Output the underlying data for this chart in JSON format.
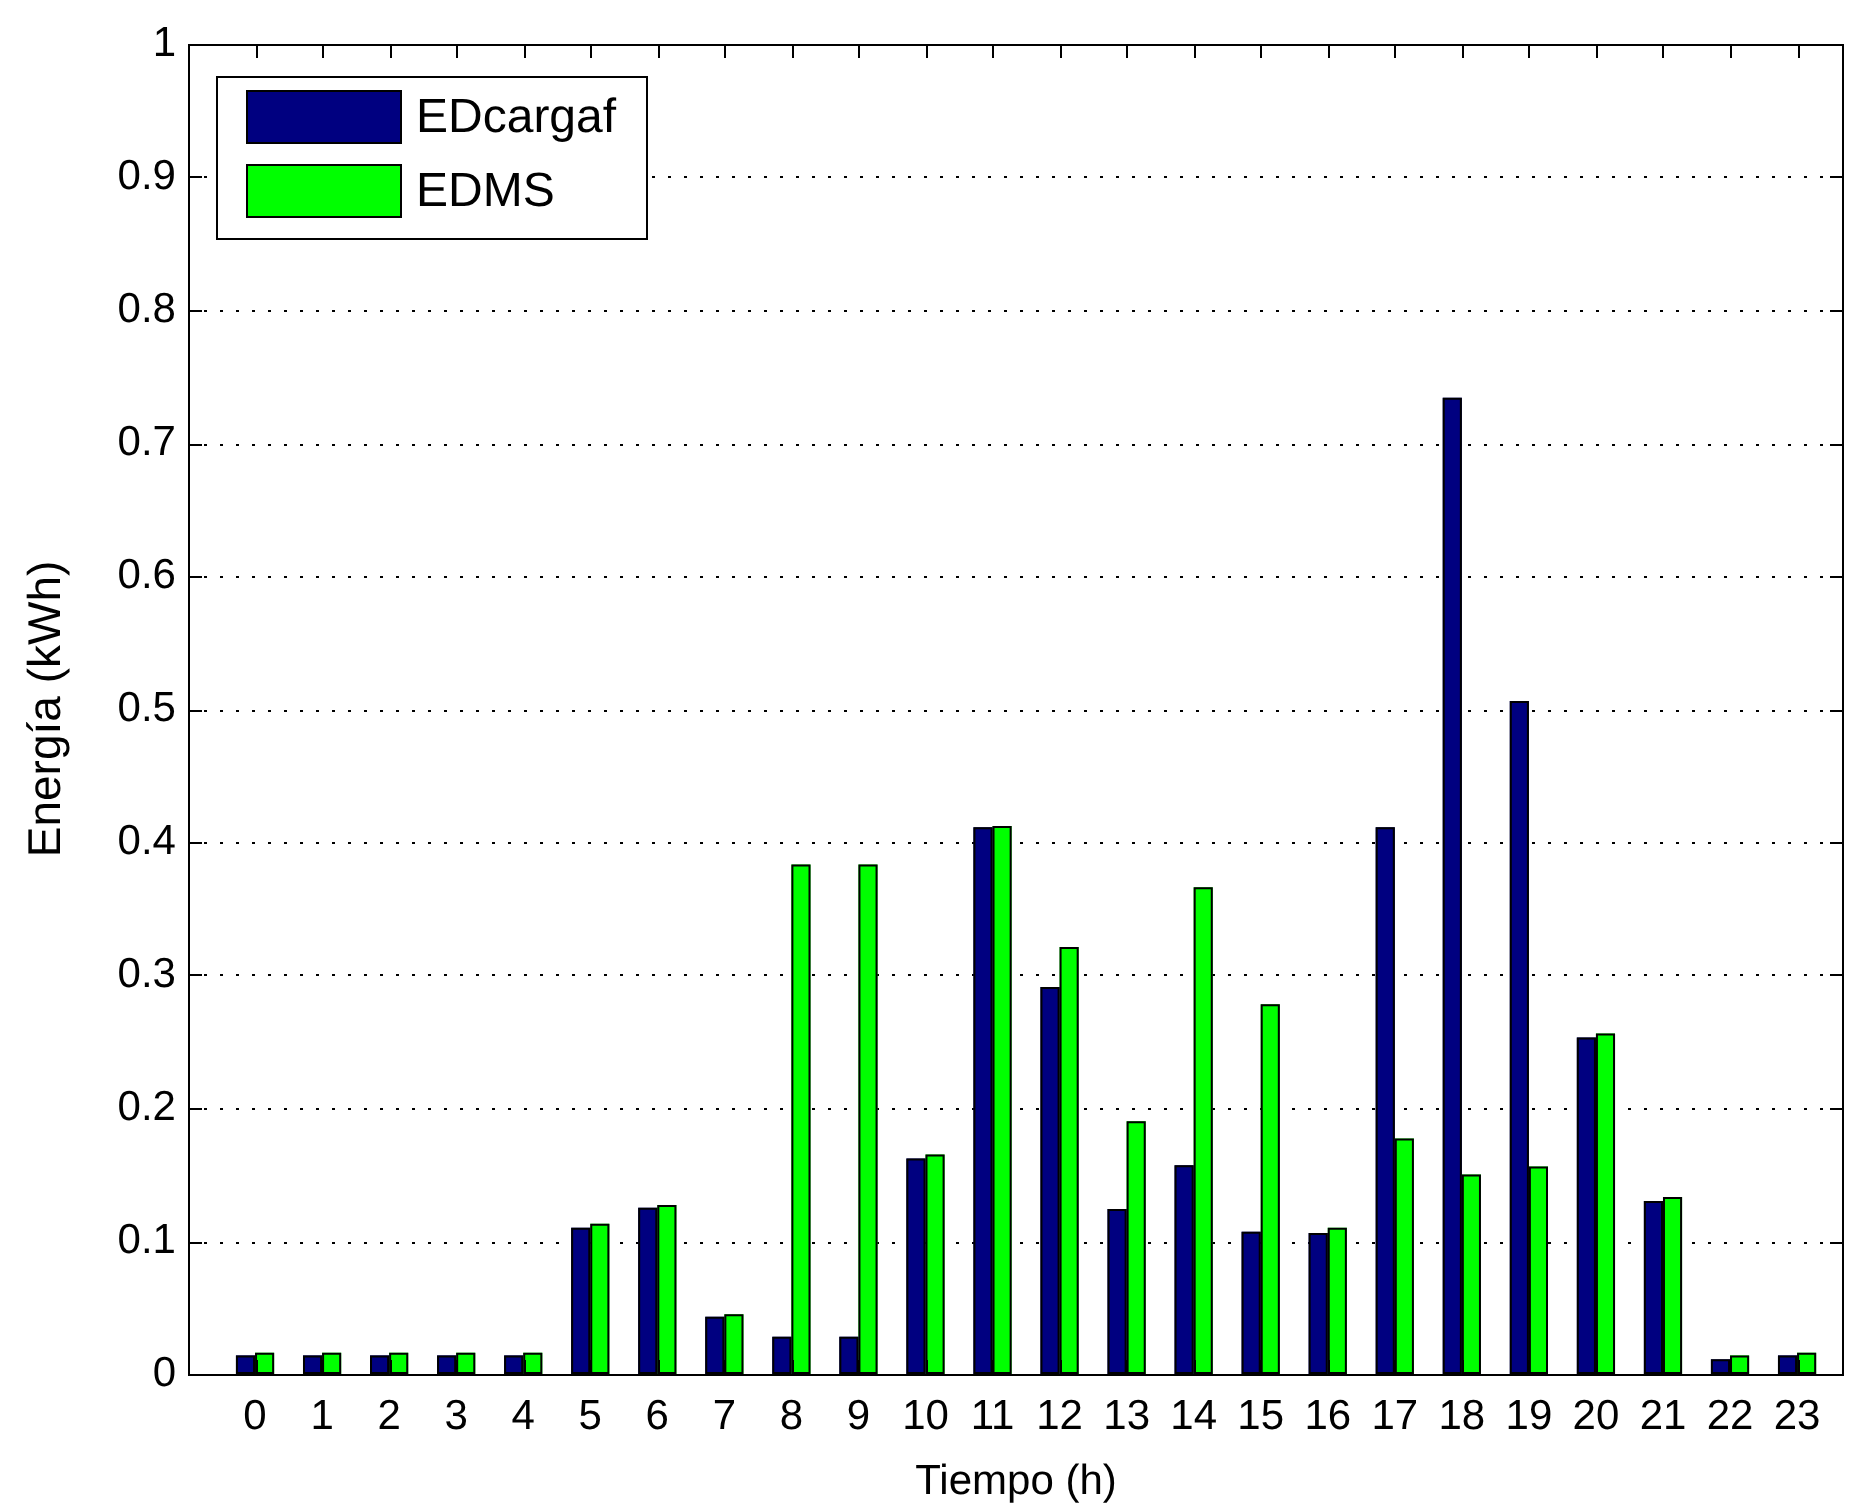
{
  "chart_data": {
    "type": "bar",
    "xlabel": "Tiempo (h)",
    "ylabel": "Energía (kWh)",
    "x": [
      0,
      1,
      2,
      3,
      4,
      5,
      6,
      7,
      8,
      9,
      10,
      11,
      12,
      13,
      14,
      15,
      16,
      17,
      18,
      19,
      20,
      21,
      22,
      23
    ],
    "series": [
      {
        "name": "EDcargaf",
        "color": "#000080",
        "values": [
          0.014,
          0.014,
          0.014,
          0.014,
          0.014,
          0.11,
          0.125,
          0.043,
          0.028,
          0.028,
          0.162,
          0.411,
          0.291,
          0.124,
          0.157,
          0.107,
          0.106,
          0.411,
          0.734,
          0.506,
          0.253,
          0.13,
          0.011,
          0.014
        ]
      },
      {
        "name": "EDMS",
        "color": "#00ff00",
        "values": [
          0.016,
          0.016,
          0.016,
          0.016,
          0.016,
          0.113,
          0.127,
          0.045,
          0.383,
          0.383,
          0.165,
          0.412,
          0.321,
          0.19,
          0.366,
          0.278,
          0.11,
          0.177,
          0.15,
          0.156,
          0.256,
          0.133,
          0.014,
          0.016
        ]
      }
    ],
    "xlim": [
      -1,
      23.7
    ],
    "xticks": [
      0,
      1,
      2,
      3,
      4,
      5,
      6,
      7,
      8,
      9,
      10,
      11,
      12,
      13,
      14,
      15,
      16,
      17,
      18,
      19,
      20,
      21,
      22,
      23
    ],
    "ylim": [
      0,
      1
    ],
    "yticks": [
      0,
      0.1,
      0.2,
      0.3,
      0.4,
      0.5,
      0.6,
      0.7,
      0.8,
      0.9,
      1
    ],
    "grid": "y",
    "legend": "top left"
  }
}
